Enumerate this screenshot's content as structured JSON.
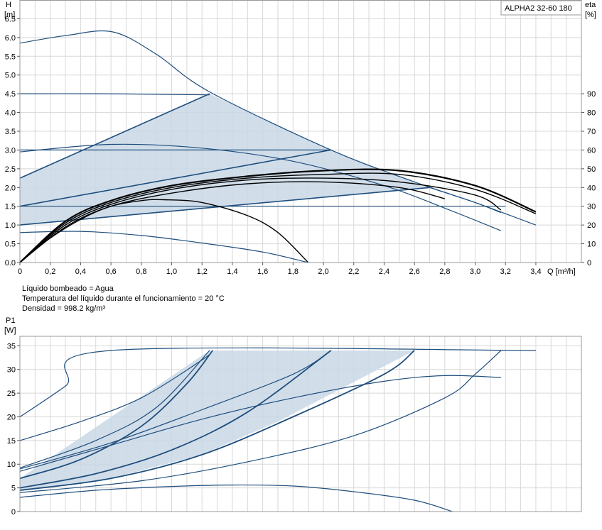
{
  "product_label": "ALPHA2 32-60 180",
  "info_lines": [
    "Líquido bombeado = Agua",
    "Temperatura del líquido durante el funcionamiento = 20 °C",
    "Densidad = 998.2 kg/m³"
  ],
  "colors": {
    "curve": "#1f4e7d",
    "eff_curve": "#000000",
    "fill": "#c9d8e6",
    "grid": "#d8d8d8",
    "frame": "#999999"
  },
  "chart_data": [
    {
      "type": "line",
      "title": "",
      "xlabel": "Q [m³/h]",
      "ylabel": "H",
      "ylabel_unit": "[m]",
      "ylabel_right": "eta",
      "ylabel_right_unit": "[%]",
      "xlim": [
        0,
        3.7
      ],
      "ylim": [
        0,
        7.0
      ],
      "ylim_right": [
        0,
        140
      ],
      "x_ticks": [
        "0",
        "0,2",
        "0,4",
        "0,6",
        "0,8",
        "1,0",
        "1,2",
        "1,4",
        "1,6",
        "1,8",
        "2,0",
        "2,2",
        "2,4",
        "2,6",
        "2,8",
        "3,0",
        "3,2",
        "3,4"
      ],
      "x_tick_values": [
        0,
        0.2,
        0.4,
        0.6,
        0.8,
        1.0,
        1.2,
        1.4,
        1.6,
        1.8,
        2.0,
        2.2,
        2.4,
        2.6,
        2.8,
        3.0,
        3.2,
        3.4
      ],
      "y_ticks": [
        "0.0",
        "0.5",
        "1.0",
        "1.5",
        "2.0",
        "2.5",
        "3.0",
        "3.5",
        "4.0",
        "4.5",
        "5.0",
        "5.5",
        "6.0",
        "6.5"
      ],
      "y_tick_values": [
        0,
        0.5,
        1.0,
        1.5,
        2.0,
        2.5,
        3.0,
        3.5,
        4.0,
        4.5,
        5.0,
        5.5,
        6.0,
        6.5
      ],
      "y_right_ticks": [
        "0",
        "10",
        "20",
        "30",
        "40",
        "50",
        "60",
        "70",
        "80",
        "90"
      ],
      "y_right_tick_values": [
        0,
        10,
        20,
        30,
        40,
        50,
        60,
        70,
        80,
        90
      ],
      "grid": true,
      "shaded_region": [
        [
          0,
          2.25
        ],
        [
          1.25,
          4.5
        ],
        [
          2.05,
          3.0
        ],
        [
          2.7,
          2.0
        ],
        [
          0,
          1.0
        ]
      ],
      "series": [
        {
          "points": [
            [
              0,
              5.85
            ],
            [
              0.3,
              6.05
            ],
            [
              0.61,
              6.15
            ],
            [
              0.9,
              5.55
            ],
            [
              1.25,
              4.55
            ],
            [
              2.05,
              3.0
            ],
            [
              2.6,
              2.15
            ],
            [
              3.0,
              1.6
            ],
            [
              3.4,
              1.0
            ]
          ]
        },
        {
          "points": [
            [
              0,
              4.5
            ],
            [
              0.5,
              4.5
            ],
            [
              1.0,
              4.48
            ],
            [
              1.25,
              4.47
            ]
          ]
        },
        {
          "points": [
            [
              0,
              3.0
            ],
            [
              1.0,
              3.0
            ],
            [
              2.05,
              3.0
            ]
          ]
        },
        {
          "points": [
            [
              0,
              1.5
            ],
            [
              1.5,
              1.5
            ],
            [
              2.5,
              1.5
            ],
            [
              3.2,
              1.5
            ]
          ]
        },
        {
          "points": [
            [
              0,
              2.25
            ],
            [
              1.25,
              4.5
            ]
          ]
        },
        {
          "points": [
            [
              0,
              1.5
            ],
            [
              2.05,
              3.0
            ]
          ]
        },
        {
          "points": [
            [
              0,
              1.0
            ],
            [
              2.7,
              2.0
            ]
          ]
        },
        {
          "points": [
            [
              0,
              2.95
            ],
            [
              0.6,
              3.15
            ],
            [
              1.2,
              3.05
            ],
            [
              1.8,
              2.7
            ],
            [
              2.4,
              2.05
            ],
            [
              2.8,
              1.45
            ],
            [
              3.17,
              0.85
            ]
          ]
        },
        {
          "points": [
            [
              0,
              0.8
            ],
            [
              0.4,
              0.83
            ],
            [
              0.8,
              0.72
            ],
            [
              1.2,
              0.52
            ],
            [
              1.6,
              0.28
            ],
            [
              1.9,
              0.0
            ]
          ]
        },
        {
          "points": [
            [
              2.7,
              2.0
            ],
            [
              3.0,
              1.6
            ],
            [
              3.17,
              1.33
            ]
          ]
        }
      ],
      "efficiency_series": [
        {
          "points": [
            [
              0,
              0
            ],
            [
              0.3,
              22
            ],
            [
              0.6,
              33
            ],
            [
              1.0,
              41
            ],
            [
              1.5,
              46
            ],
            [
              2.0,
              49
            ],
            [
              2.5,
              49
            ],
            [
              3.0,
              41
            ],
            [
              3.4,
              27
            ]
          ]
        },
        {
          "points": [
            [
              0,
              0
            ],
            [
              0.3,
              21
            ],
            [
              0.6,
              32
            ],
            [
              1.0,
              40
            ],
            [
              1.5,
              45
            ],
            [
              2.0,
              47
            ],
            [
              2.5,
              47
            ],
            [
              3.0,
              39
            ],
            [
              3.4,
              26
            ]
          ]
        },
        {
          "points": [
            [
              0,
              0
            ],
            [
              0.3,
              20
            ],
            [
              0.6,
              31
            ],
            [
              1.0,
              39
            ],
            [
              1.5,
              44
            ],
            [
              2.0,
              45
            ],
            [
              2.5,
              43
            ],
            [
              3.0,
              36
            ],
            [
              3.17,
              28
            ]
          ]
        },
        {
          "points": [
            [
              0,
              0
            ],
            [
              0.3,
              19
            ],
            [
              0.6,
              30
            ],
            [
              1.0,
              37
            ],
            [
              1.5,
              42
            ],
            [
              2.0,
              43
            ],
            [
              2.5,
              40
            ],
            [
              2.8,
              34
            ]
          ]
        },
        {
          "points": [
            [
              0,
              0
            ],
            [
              0.2,
              13
            ],
            [
              0.4,
              23
            ],
            [
              0.6,
              30
            ],
            [
              0.8,
              33
            ],
            [
              0.95,
              33.5
            ],
            [
              1.2,
              32
            ],
            [
              1.5,
              25
            ],
            [
              1.7,
              16
            ],
            [
              1.9,
              0
            ]
          ]
        }
      ]
    },
    {
      "type": "line",
      "title": "",
      "xlabel": "",
      "ylabel": "P1",
      "ylabel_unit": "[W]",
      "xlim": [
        0,
        3.7
      ],
      "ylim": [
        0,
        37
      ],
      "y_ticks": [
        "0",
        "5",
        "10",
        "15",
        "20",
        "25",
        "30",
        "35"
      ],
      "y_tick_values": [
        0,
        5,
        10,
        15,
        20,
        25,
        30,
        35
      ],
      "grid": true,
      "shaded_region": [
        [
          0,
          7
        ],
        [
          1.25,
          34
        ],
        [
          2.05,
          34
        ],
        [
          2.6,
          34
        ],
        [
          1.7,
          19
        ],
        [
          1.2,
          12
        ],
        [
          0.6,
          7
        ],
        [
          0,
          4.5
        ]
      ],
      "series": [
        {
          "points": [
            [
              0,
              20
            ],
            [
              0.3,
              26.5
            ],
            [
              0.6,
              34
            ],
            [
              3.4,
              34
            ]
          ]
        },
        {
          "points": [
            [
              0,
              15
            ],
            [
              0.4,
              19
            ],
            [
              0.8,
              24
            ],
            [
              1.2,
              32
            ],
            [
              1.27,
              34
            ]
          ]
        },
        {
          "points": [
            [
              0,
              9.2
            ],
            [
              0.5,
              15
            ],
            [
              0.9,
              22
            ],
            [
              1.25,
              34
            ]
          ]
        },
        {
          "points": [
            [
              0,
              7
            ],
            [
              0.4,
              11
            ],
            [
              0.8,
              18
            ],
            [
              1.1,
              27
            ],
            [
              1.27,
              34
            ]
          ]
        },
        {
          "points": [
            [
              0,
              9
            ],
            [
              0.6,
              14.5
            ],
            [
              1.2,
              21.5
            ],
            [
              1.8,
              29
            ],
            [
              2.05,
              34
            ]
          ]
        },
        {
          "points": [
            [
              0,
              5
            ],
            [
              0.5,
              8
            ],
            [
              1.0,
              13
            ],
            [
              1.5,
              21
            ],
            [
              2.05,
              34
            ]
          ]
        },
        {
          "points": [
            [
              0,
              4.5
            ],
            [
              0.6,
              7
            ],
            [
              1.2,
              12
            ],
            [
              1.8,
              20
            ],
            [
              2.4,
              29
            ],
            [
              2.6,
              34
            ]
          ]
        },
        {
          "points": [
            [
              0,
              4
            ],
            [
              0.8,
              6.5
            ],
            [
              1.5,
              10.5
            ],
            [
              2.2,
              16
            ],
            [
              2.8,
              24
            ],
            [
              3.0,
              29
            ],
            [
              3.17,
              34
            ]
          ]
        },
        {
          "points": [
            [
              0,
              8.5
            ],
            [
              0.6,
              14
            ],
            [
              1.2,
              19.5
            ],
            [
              1.8,
              24
            ],
            [
              2.4,
              27.5
            ],
            [
              2.8,
              28.7
            ],
            [
              3.17,
              28.3
            ]
          ]
        },
        {
          "points": [
            [
              0,
              3
            ],
            [
              0.5,
              4.5
            ],
            [
              1.0,
              5.3
            ],
            [
              1.4,
              5.6
            ],
            [
              1.8,
              5.4
            ],
            [
              2.2,
              4.2
            ],
            [
              2.6,
              2.4
            ],
            [
              2.85,
              0
            ]
          ]
        }
      ]
    }
  ]
}
